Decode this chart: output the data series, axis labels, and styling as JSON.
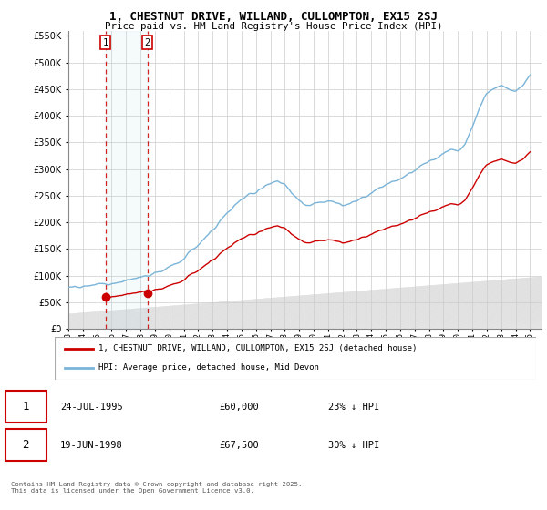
{
  "title1": "1, CHESTNUT DRIVE, WILLAND, CULLOMPTON, EX15 2SJ",
  "title2": "Price paid vs. HM Land Registry's House Price Index (HPI)",
  "legend1": "1, CHESTNUT DRIVE, WILLAND, CULLOMPTON, EX15 2SJ (detached house)",
  "legend2": "HPI: Average price, detached house, Mid Devon",
  "sale1_date": "24-JUL-1995",
  "sale1_price": 60000,
  "sale1_hpi": "23% ↓ HPI",
  "sale2_date": "19-JUN-1998",
  "sale2_price": 67500,
  "sale2_hpi": "30% ↓ HPI",
  "footnote": "Contains HM Land Registry data © Crown copyright and database right 2025.\nThis data is licensed under the Open Government Licence v3.0.",
  "hpi_color": "#7ab4d8",
  "price_color": "#cc0000",
  "sale1_x": 1995.56,
  "sale2_x": 1998.47,
  "ylim_max": 560000,
  "ylim_min": 0,
  "hpi_knots_x": [
    1993,
    1993.5,
    1994,
    1994.5,
    1995,
    1995.5,
    1996,
    1996.5,
    1997,
    1997.5,
    1998,
    1998.5,
    1999,
    1999.5,
    2000,
    2000.5,
    2001,
    2001.5,
    2002,
    2002.5,
    2003,
    2003.5,
    2004,
    2004.5,
    2005,
    2005.5,
    2006,
    2006.5,
    2007,
    2007.5,
    2008,
    2008.5,
    2009,
    2009.5,
    2010,
    2010.5,
    2011,
    2011.5,
    2012,
    2012.5,
    2013,
    2013.5,
    2014,
    2014.5,
    2015,
    2015.5,
    2016,
    2016.5,
    2017,
    2017.5,
    2018,
    2018.5,
    2019,
    2019.5,
    2020,
    2020.5,
    2021,
    2021.5,
    2022,
    2022.5,
    2023,
    2023.5,
    2024,
    2024.5,
    2025
  ],
  "hpi_knots_y": [
    78000,
    79000,
    80000,
    81000,
    82000,
    84000,
    86000,
    88000,
    90000,
    92000,
    94000,
    97000,
    101000,
    106000,
    112000,
    120000,
    130000,
    142000,
    155000,
    168000,
    182000,
    198000,
    214000,
    228000,
    238000,
    245000,
    252000,
    262000,
    268000,
    272000,
    265000,
    248000,
    235000,
    228000,
    228000,
    233000,
    235000,
    232000,
    228000,
    232000,
    238000,
    245000,
    252000,
    260000,
    266000,
    272000,
    278000,
    285000,
    295000,
    305000,
    312000,
    318000,
    325000,
    332000,
    330000,
    345000,
    375000,
    410000,
    440000,
    450000,
    455000,
    448000,
    445000,
    460000,
    480000
  ]
}
